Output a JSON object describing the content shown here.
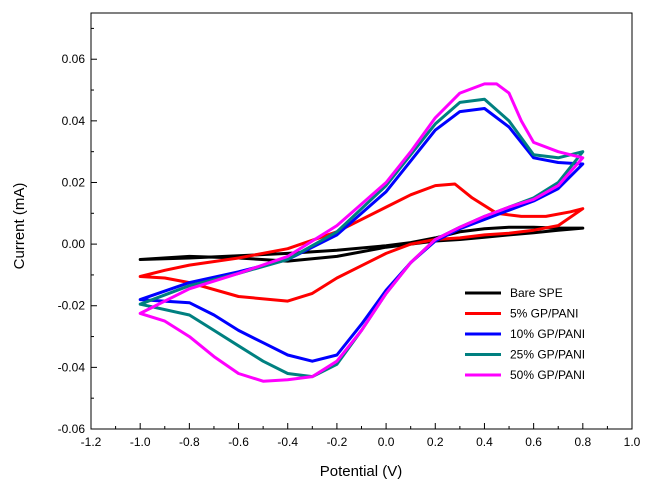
{
  "chart_data": {
    "type": "line",
    "title": "",
    "xlabel": "Potential (V)",
    "ylabel": "Current (mA)",
    "xlim": [
      -1.2,
      1.0
    ],
    "ylim": [
      -0.06,
      0.075
    ],
    "xticks": [
      "-1.2",
      "-1.0",
      "-0.8",
      "-0.6",
      "-0.4",
      "-0.2",
      "0.0",
      "0.2",
      "0.4",
      "0.6",
      "0.8",
      "1.0"
    ],
    "yticks": [
      "-0.06",
      "-0.04",
      "-0.02",
      "0.00",
      "0.02",
      "0.04",
      "0.06"
    ],
    "grid": false,
    "legend_position": "bottom-right",
    "series": [
      {
        "name": "Bare SPE",
        "color": "#000000",
        "x": [
          -1.0,
          -0.8,
          -0.6,
          -0.4,
          -0.2,
          0.0,
          0.1,
          0.2,
          0.3,
          0.4,
          0.5,
          0.6,
          0.7,
          0.8,
          0.7,
          0.6,
          0.5,
          0.4,
          0.3,
          0.2,
          0.1,
          0.0,
          -0.2,
          -0.4,
          -0.6,
          -0.8,
          -1.0
        ],
        "y": [
          -0.005,
          -0.0045,
          -0.0038,
          -0.003,
          -0.002,
          -0.0005,
          0.0005,
          0.002,
          0.004,
          0.005,
          0.0055,
          0.0055,
          0.0052,
          0.0052,
          0.0045,
          0.0037,
          0.003,
          0.0022,
          0.0015,
          0.001,
          0.0,
          -0.001,
          -0.004,
          -0.0055,
          -0.0045,
          -0.004,
          -0.005
        ]
      },
      {
        "name": "5% GP/PANI",
        "color": "#ff0000",
        "x": [
          -1.0,
          -0.9,
          -0.8,
          -0.6,
          -0.4,
          -0.2,
          0.0,
          0.1,
          0.2,
          0.28,
          0.35,
          0.45,
          0.55,
          0.65,
          0.75,
          0.8,
          0.7,
          0.6,
          0.5,
          0.4,
          0.3,
          0.2,
          0.1,
          0.0,
          -0.1,
          -0.2,
          -0.3,
          -0.4,
          -0.6,
          -0.8,
          -0.9,
          -1.0
        ],
        "y": [
          -0.0105,
          -0.0085,
          -0.0068,
          -0.0045,
          -0.0015,
          0.004,
          0.012,
          0.016,
          0.019,
          0.0195,
          0.015,
          0.01,
          0.009,
          0.009,
          0.0105,
          0.0115,
          0.006,
          0.0045,
          0.0035,
          0.003,
          0.002,
          0.0015,
          0.0,
          -0.003,
          -0.007,
          -0.011,
          -0.016,
          -0.0185,
          -0.017,
          -0.0125,
          -0.011,
          -0.0105
        ]
      },
      {
        "name": "10% GP/PANI",
        "color": "#0000ff",
        "x": [
          -1.0,
          -0.8,
          -0.6,
          -0.4,
          -0.2,
          0.0,
          0.1,
          0.2,
          0.3,
          0.4,
          0.5,
          0.6,
          0.7,
          0.8,
          0.7,
          0.6,
          0.5,
          0.4,
          0.3,
          0.2,
          0.1,
          0.0,
          -0.1,
          -0.2,
          -0.3,
          -0.4,
          -0.5,
          -0.6,
          -0.7,
          -0.8,
          -1.0
        ],
        "y": [
          -0.018,
          -0.0125,
          -0.009,
          -0.005,
          0.003,
          0.017,
          0.027,
          0.037,
          0.043,
          0.044,
          0.038,
          0.028,
          0.0265,
          0.026,
          0.018,
          0.014,
          0.011,
          0.008,
          0.005,
          0.001,
          -0.006,
          -0.015,
          -0.026,
          -0.036,
          -0.038,
          -0.036,
          -0.032,
          -0.028,
          -0.023,
          -0.019,
          -0.018
        ]
      },
      {
        "name": "25% GP/PANI",
        "color": "#008080",
        "x": [
          -1.0,
          -0.8,
          -0.6,
          -0.4,
          -0.2,
          0.0,
          0.1,
          0.2,
          0.3,
          0.4,
          0.5,
          0.6,
          0.7,
          0.8,
          0.7,
          0.6,
          0.5,
          0.4,
          0.3,
          0.2,
          0.1,
          0.0,
          -0.1,
          -0.2,
          -0.3,
          -0.4,
          -0.5,
          -0.6,
          -0.7,
          -0.8,
          -1.0
        ],
        "y": [
          -0.0195,
          -0.0135,
          -0.0095,
          -0.005,
          0.004,
          0.019,
          0.029,
          0.039,
          0.046,
          0.047,
          0.04,
          0.029,
          0.028,
          0.03,
          0.02,
          0.015,
          0.012,
          0.009,
          0.0055,
          0.0015,
          -0.006,
          -0.016,
          -0.028,
          -0.039,
          -0.043,
          -0.042,
          -0.038,
          -0.033,
          -0.028,
          -0.023,
          -0.0195
        ]
      },
      {
        "name": "50% GP/PANI",
        "color": "#ff00ff",
        "x": [
          -1.0,
          -0.8,
          -0.6,
          -0.4,
          -0.2,
          0.0,
          0.1,
          0.2,
          0.3,
          0.4,
          0.45,
          0.5,
          0.55,
          0.6,
          0.7,
          0.8,
          0.7,
          0.6,
          0.5,
          0.4,
          0.3,
          0.2,
          0.1,
          0.0,
          -0.1,
          -0.2,
          -0.3,
          -0.4,
          -0.5,
          -0.6,
          -0.7,
          -0.8,
          -0.9,
          -1.0
        ],
        "y": [
          -0.0225,
          -0.0145,
          -0.0095,
          -0.004,
          0.006,
          0.02,
          0.03,
          0.041,
          0.049,
          0.052,
          0.052,
          0.049,
          0.04,
          0.033,
          0.03,
          0.028,
          0.019,
          0.0145,
          0.012,
          0.009,
          0.0055,
          0.0015,
          -0.006,
          -0.016,
          -0.028,
          -0.038,
          -0.043,
          -0.044,
          -0.0445,
          -0.042,
          -0.0365,
          -0.03,
          -0.025,
          -0.0225
        ]
      }
    ]
  }
}
